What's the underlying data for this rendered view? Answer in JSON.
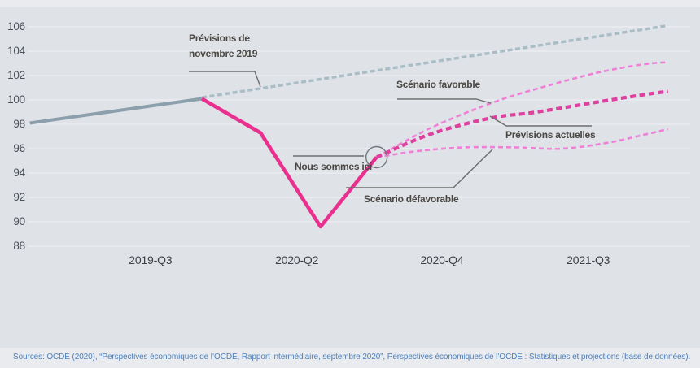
{
  "chart_data": {
    "type": "line",
    "title": "",
    "grid": true,
    "legend": "none",
    "y_axis": {
      "tick_labels": [
        106,
        104,
        102,
        100,
        98,
        96,
        94,
        92,
        90,
        88
      ],
      "range": [
        88,
        106
      ]
    },
    "x_axis": {
      "tick_labels": [
        "2019-Q3",
        "2020-Q2",
        "2020-Q4",
        "2021-Q3"
      ],
      "tick_positions_pct": [
        18.5,
        40.7,
        62.7,
        84.9
      ]
    },
    "series": [
      {
        "id": "realise_solide",
        "color": "#8ba0ac",
        "line": "solid",
        "points_xpct_value": [
          [
            0.2,
            98.1
          ],
          [
            26.3,
            100.1
          ]
        ]
      },
      {
        "id": "previsions_novembre_2019",
        "color": "#a9bdc6",
        "line": "dashed",
        "points_xpct_value": [
          [
            26.3,
            100.2
          ],
          [
            97,
            106.1
          ]
        ]
      },
      {
        "id": "evolution_effective",
        "color": "#e9308f",
        "line": "solid",
        "points_xpct_value": [
          [
            26.3,
            100.1
          ],
          [
            35.2,
            97.3
          ],
          [
            44.3,
            89.6
          ],
          [
            52.8,
            95.3
          ]
        ]
      },
      {
        "id": "scenario_favorable",
        "color": "#ef80d8",
        "line": "dashed",
        "points_xpct_value": [
          [
            52.8,
            95.3
          ],
          [
            61,
            97.7
          ],
          [
            70,
            99.7
          ],
          [
            77,
            100.9
          ],
          [
            86,
            102.2
          ],
          [
            93,
            102.9
          ],
          [
            97,
            103.1
          ]
        ]
      },
      {
        "id": "previsions_actuelles",
        "color": "#df3f9e",
        "line": "dashed",
        "points_xpct_value": [
          [
            52.8,
            95.3
          ],
          [
            61,
            97.2
          ],
          [
            70,
            98.5
          ],
          [
            77,
            99.0
          ],
          [
            86,
            99.8
          ],
          [
            93,
            100.4
          ],
          [
            97,
            100.7
          ]
        ]
      },
      {
        "id": "scenario_defavorable",
        "color": "#ef80d8",
        "line": "dashed",
        "points_xpct_value": [
          [
            52.8,
            95.3
          ],
          [
            59,
            95.8
          ],
          [
            66,
            96.1
          ],
          [
            74,
            96.1
          ],
          [
            81,
            96.0
          ],
          [
            88,
            96.5
          ],
          [
            93,
            97.1
          ],
          [
            97,
            97.6
          ]
        ]
      }
    ],
    "marker": {
      "shape": "circle-outline",
      "x_pct": 52.8,
      "value": 95.3
    },
    "annotations": [
      {
        "id": "nov2019",
        "text": "Prévisions de novembre 2019"
      },
      {
        "id": "favorable",
        "text": "Scénario favorable"
      },
      {
        "id": "nous_sommes_ici",
        "text": "Nous sommes ici"
      },
      {
        "id": "defavorable",
        "text": "Scénario défavorable"
      },
      {
        "id": "actuelles",
        "text": "Prévisions actuelles"
      }
    ]
  },
  "colors": {
    "panel_background": "#dfe2e7",
    "page_background": "#e9ebee",
    "gridline": "#eef0f4",
    "gray_solid": "#8ba0ac",
    "gray_dashed": "#a9bdc6",
    "pink_solid": "#e9308f",
    "pink_dashed": "#df3f9e",
    "light_pink_dashed": "#ef80d8",
    "connector": "#6e6e6e",
    "marker_circle": "#70787e",
    "annotation_text": "#4b4742",
    "source_text": "#4e80bc"
  },
  "footer": {
    "sources": "Sources: OCDE (2020), “Perspectives économiques de l’OCDE, Rapport intermédiaire, septembre 2020”, Perspectives économiques de l’OCDE : Statistiques et projections (base de données)."
  }
}
